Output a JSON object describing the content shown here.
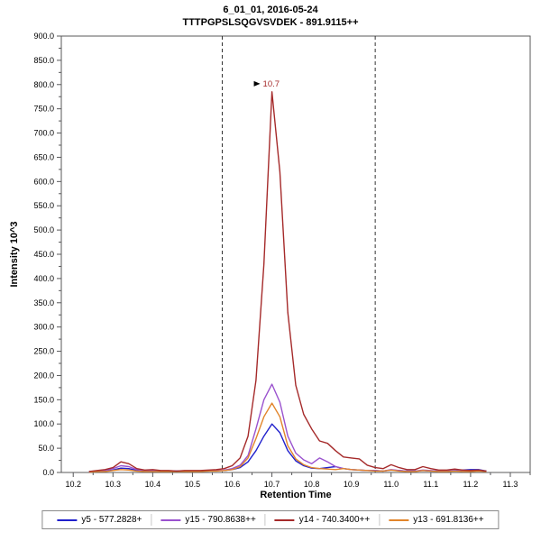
{
  "titles": {
    "line1": "6_01_01, 2016-05-24",
    "line2": "TTTPGPSLSQGVSVDEK - 891.9115++"
  },
  "chart_data": {
    "type": "line",
    "title": "6_01_01, 2016-05-24",
    "subtitle": "TTTPGPSLSQGVSVDEK - 891.9115++",
    "xlabel": "Retention Time",
    "ylabel": "Intensity 10^3",
    "xlim": [
      10.17,
      11.35
    ],
    "ylim": [
      0,
      900
    ],
    "x_ticks": [
      10.2,
      10.3,
      10.4,
      10.5,
      10.6,
      10.7,
      10.8,
      10.9,
      11.0,
      11.1,
      11.2,
      11.3
    ],
    "y_ticks": [
      0,
      50,
      100,
      150,
      200,
      250,
      300,
      350,
      400,
      450,
      500,
      550,
      600,
      650,
      700,
      750,
      800,
      850,
      900
    ],
    "grid": false,
    "legend_position": "bottom",
    "integration_boundaries": [
      10.575,
      10.96
    ],
    "annotation": {
      "text": "10.7",
      "x": 10.7,
      "y": 785,
      "color": "#a52a2a"
    },
    "x": [
      10.24,
      10.26,
      10.28,
      10.3,
      10.32,
      10.34,
      10.36,
      10.38,
      10.4,
      10.42,
      10.44,
      10.46,
      10.48,
      10.5,
      10.52,
      10.54,
      10.56,
      10.58,
      10.6,
      10.62,
      10.64,
      10.66,
      10.68,
      10.7,
      10.72,
      10.74,
      10.76,
      10.78,
      10.8,
      10.82,
      10.84,
      10.86,
      10.88,
      10.9,
      10.92,
      10.94,
      10.96,
      10.98,
      11.0,
      11.02,
      11.04,
      11.06,
      11.08,
      11.1,
      11.12,
      11.14,
      11.16,
      11.18,
      11.2,
      11.22,
      11.24
    ],
    "series": [
      {
        "name": "y5 - 577.2828+",
        "color": "#2020cc",
        "values": [
          2,
          3,
          3,
          5,
          9,
          8,
          4,
          3,
          3,
          3,
          3,
          3,
          3,
          3,
          3,
          3,
          4,
          4,
          6,
          10,
          22,
          45,
          75,
          100,
          82,
          45,
          24,
          14,
          9,
          8,
          10,
          12,
          8,
          6,
          5,
          4,
          4,
          3,
          5,
          4,
          3,
          3,
          4,
          3,
          3,
          3,
          4,
          5,
          6,
          6,
          3
        ]
      },
      {
        "name": "y15 - 790.8638++",
        "color": "#9a52ce",
        "values": [
          2,
          3,
          4,
          8,
          14,
          12,
          6,
          4,
          4,
          3,
          3,
          3,
          3,
          3,
          3,
          4,
          4,
          5,
          8,
          15,
          35,
          90,
          150,
          182,
          145,
          75,
          40,
          26,
          18,
          30,
          22,
          12,
          8,
          6,
          5,
          4,
          4,
          3,
          6,
          4,
          3,
          3,
          5,
          4,
          3,
          3,
          4,
          3,
          3,
          4,
          2
        ]
      },
      {
        "name": "y14 - 740.3400++",
        "color": "#a52a2a",
        "values": [
          2,
          4,
          6,
          10,
          22,
          18,
          8,
          5,
          6,
          4,
          4,
          3,
          4,
          4,
          4,
          5,
          6,
          8,
          14,
          30,
          75,
          190,
          430,
          785,
          620,
          330,
          180,
          120,
          90,
          65,
          60,
          45,
          32,
          30,
          28,
          15,
          10,
          8,
          16,
          10,
          6,
          6,
          12,
          8,
          5,
          5,
          7,
          5,
          4,
          5,
          3
        ]
      },
      {
        "name": "y13 - 691.8136++",
        "color": "#e2852b",
        "values": [
          1,
          2,
          2,
          4,
          6,
          5,
          3,
          2,
          2,
          2,
          2,
          2,
          2,
          2,
          2,
          3,
          3,
          4,
          6,
          12,
          30,
          70,
          115,
          143,
          115,
          55,
          28,
          16,
          10,
          8,
          7,
          6,
          8,
          6,
          5,
          4,
          3,
          3,
          5,
          3,
          2,
          2,
          4,
          3,
          2,
          2,
          3,
          2,
          2,
          3,
          2
        ]
      }
    ],
    "draw_order": [
      0,
      1,
      3,
      2
    ]
  }
}
